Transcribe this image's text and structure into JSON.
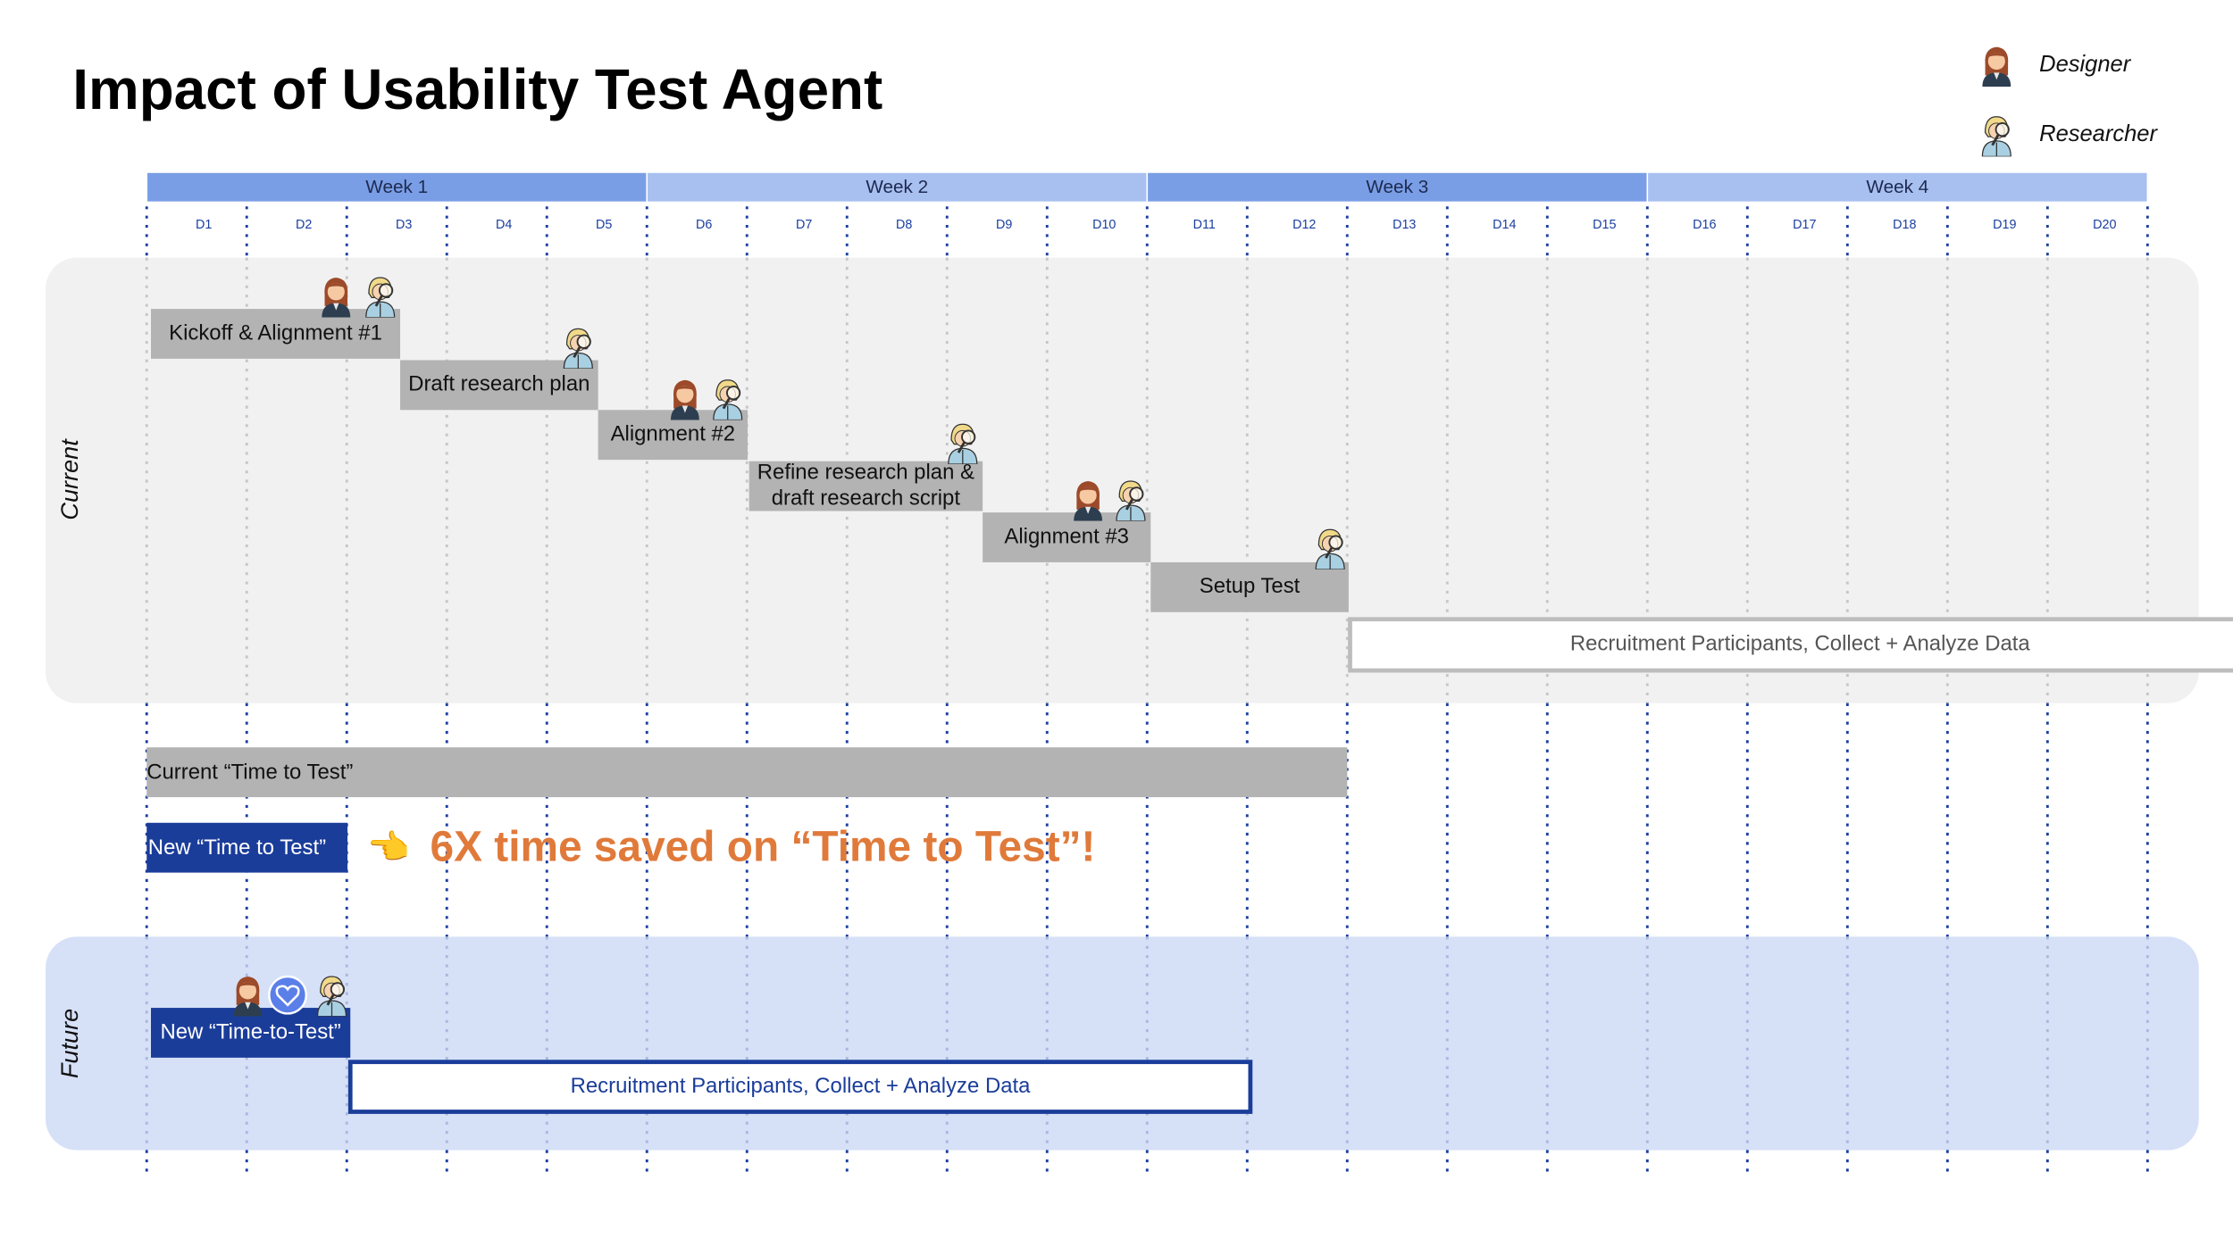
{
  "title": "Impact of Usability Test Agent",
  "legend": [
    "Designer",
    "Researcher"
  ],
  "weeks": [
    "Week 1",
    "Week 2",
    "Week 3",
    "Week 4"
  ],
  "days": [
    "D1",
    "D2",
    "D3",
    "D4",
    "D5",
    "D6",
    "D7",
    "D8",
    "D9",
    "D10",
    "D11",
    "D12",
    "D13",
    "D14",
    "D15",
    "D16",
    "D17",
    "D18",
    "D19",
    "D20"
  ],
  "sections": [
    {
      "label": "Current",
      "tasks": [
        {
          "lines": [
            "Kickoff & Alignment #1"
          ]
        },
        {
          "lines": [
            "Draft research plan"
          ]
        },
        {
          "lines": [
            "Alignment #2"
          ]
        },
        {
          "lines": [
            "Refine research plan &",
            "draft research script"
          ]
        },
        {
          "lines": [
            "Alignment #3"
          ]
        },
        {
          "lines": [
            "Setup Test"
          ]
        },
        {
          "lines": [
            "Recruitment Participants, Collect + Analyze Data"
          ]
        }
      ]
    },
    {
      "label": "Future",
      "tasks": [
        {
          "lines": [
            "New “Time-to-Test”"
          ]
        },
        {
          "lines": [
            "Recruitment Participants, Collect + Analyze Data"
          ]
        }
      ]
    }
  ],
  "comparison": {
    "current": "Current “Time to Test”",
    "new": "New “Time to Test”",
    "pointer": "👈",
    "callout": "6X time saved on “Time to Test”!"
  }
}
